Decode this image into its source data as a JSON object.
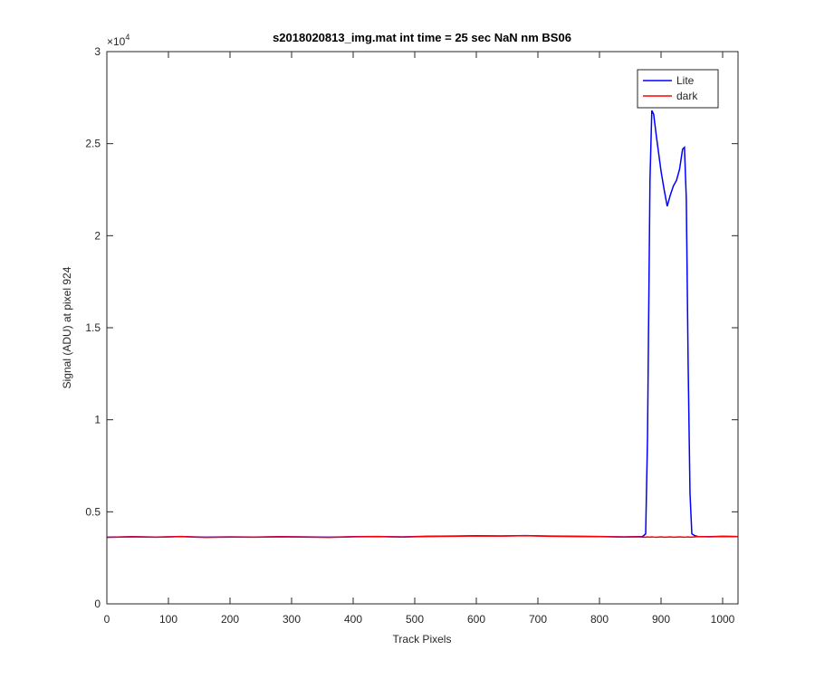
{
  "chart_data": {
    "type": "line",
    "title": "s2018020813_img.mat int time = 25 sec  NaN nm BS06",
    "x_label": "Track Pixels",
    "y_label": "Signal (ADU) at pixel 924",
    "y_multiplier_base": "×10",
    "y_multiplier_exponent": "4",
    "xlim": [
      0,
      1025
    ],
    "ylim": [
      0,
      3
    ],
    "xticks": [
      0,
      100,
      200,
      300,
      400,
      500,
      600,
      700,
      800,
      900,
      1000
    ],
    "yticks": [
      0,
      0.5,
      1,
      1.5,
      2,
      2.5,
      3
    ],
    "legend_position": "top-right",
    "x": [
      0,
      40,
      80,
      120,
      160,
      200,
      240,
      280,
      320,
      360,
      400,
      440,
      480,
      520,
      560,
      600,
      640,
      680,
      720,
      760,
      800,
      840,
      860,
      870,
      875,
      878,
      880,
      882,
      885,
      888,
      892,
      896,
      900,
      905,
      910,
      915,
      920,
      925,
      930,
      935,
      938,
      941,
      944,
      947,
      950,
      955,
      960,
      980,
      1000,
      1024
    ],
    "series": [
      {
        "name": "Lite",
        "color": "#0000ff",
        "values": [
          0.362,
          0.365,
          0.363,
          0.366,
          0.362,
          0.364,
          0.363,
          0.365,
          0.364,
          0.362,
          0.365,
          0.366,
          0.364,
          0.367,
          0.368,
          0.37,
          0.369,
          0.371,
          0.368,
          0.367,
          0.366,
          0.364,
          0.365,
          0.366,
          0.38,
          0.9,
          1.6,
          2.3,
          2.68,
          2.66,
          2.55,
          2.45,
          2.35,
          2.25,
          2.16,
          2.22,
          2.27,
          2.3,
          2.36,
          2.47,
          2.48,
          2.2,
          1.3,
          0.6,
          0.38,
          0.37,
          0.366,
          0.365,
          0.367,
          0.366
        ]
      },
      {
        "name": "dark",
        "color": "#ff0000",
        "values": [
          0.361,
          0.364,
          0.362,
          0.365,
          0.361,
          0.363,
          0.362,
          0.364,
          0.363,
          0.361,
          0.364,
          0.365,
          0.363,
          0.366,
          0.367,
          0.369,
          0.368,
          0.37,
          0.367,
          0.366,
          0.365,
          0.363,
          0.364,
          0.363,
          0.362,
          0.364,
          0.363,
          0.362,
          0.364,
          0.363,
          0.362,
          0.363,
          0.364,
          0.362,
          0.363,
          0.364,
          0.362,
          0.363,
          0.364,
          0.363,
          0.362,
          0.363,
          0.364,
          0.362,
          0.363,
          0.364,
          0.365,
          0.364,
          0.366,
          0.365
        ]
      }
    ]
  }
}
